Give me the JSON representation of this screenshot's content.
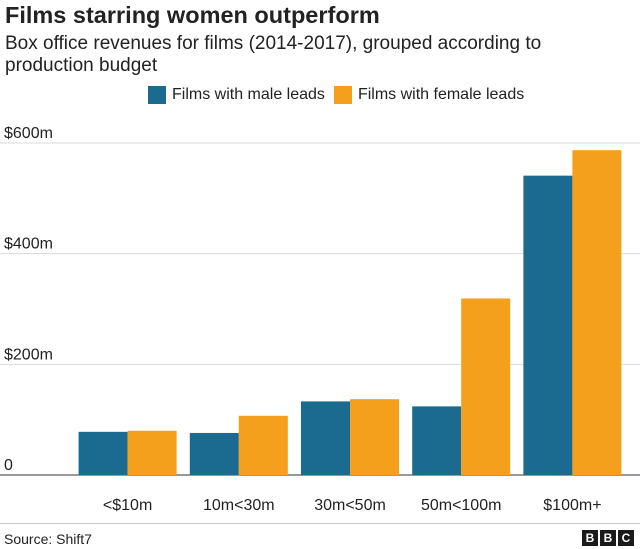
{
  "chart_data": {
    "type": "bar",
    "title": "Films starring women outperform",
    "subtitle": "Box office revenues for films (2014-2017), grouped according to production budget",
    "categories": [
      "<$10m",
      "10m<30m",
      "30m<50m",
      "50m<100m",
      "$100m+"
    ],
    "series": [
      {
        "name": "Films with male leads",
        "color": "#1a6b8f",
        "values": [
          78,
          76,
          133,
          124,
          541
        ]
      },
      {
        "name": "Films with female leads",
        "color": "#f4a01c",
        "values": [
          80,
          107,
          137,
          319,
          587
        ]
      }
    ],
    "y_ticks": [
      {
        "value": 0,
        "label": "0"
      },
      {
        "value": 200,
        "label": "$200m"
      },
      {
        "value": 400,
        "label": "$400m"
      },
      {
        "value": 600,
        "label": "$600m"
      }
    ],
    "ylim": [
      0,
      600
    ],
    "xlabel": "",
    "ylabel": "",
    "grid": true,
    "legend_position": "top"
  },
  "footer": {
    "source": "Source:  Shift7",
    "logo_letters": [
      "B",
      "B",
      "C"
    ]
  }
}
